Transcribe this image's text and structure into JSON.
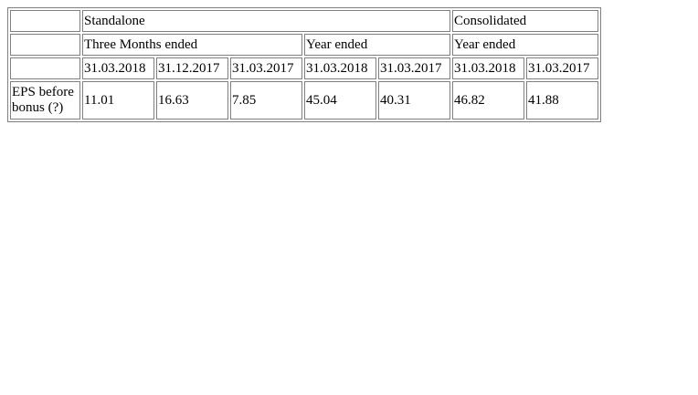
{
  "table": {
    "header_row1": {
      "group1": "Standalone",
      "group2": "Consolidated"
    },
    "header_row2": {
      "period1": "Three Months ended",
      "period2": "Year ended",
      "period3": "Year ended"
    },
    "dates": [
      "31.03.2018",
      "31.12.2017",
      "31.03.2017",
      "31.03.2018",
      "31.03.2017",
      "31.03.2018",
      "31.03.2017"
    ],
    "rows": [
      {
        "label_line1": "EPS before",
        "label_line2": "bonus (?)",
        "values": [
          "11.01",
          "16.63",
          "7.85",
          "45.04",
          "40.31",
          "46.82",
          "41.88"
        ]
      }
    ]
  }
}
